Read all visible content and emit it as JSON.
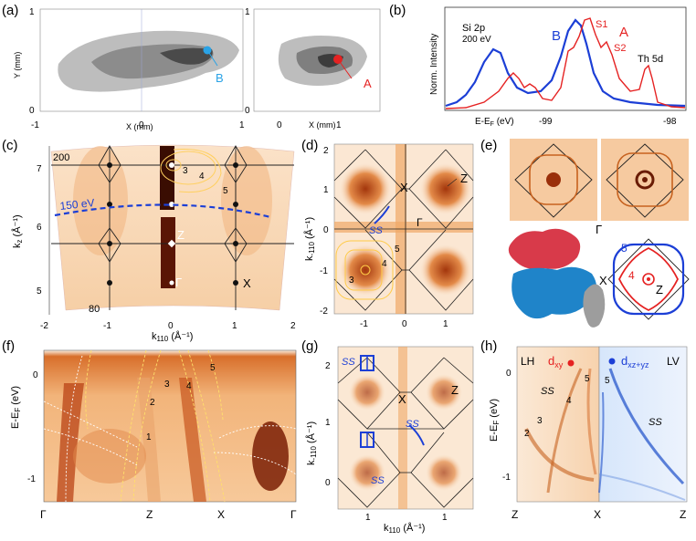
{
  "panel_labels": {
    "a": "(a)",
    "b": "(b)",
    "c": "(c)",
    "d": "(d)",
    "e": "(e)",
    "f": "(f)",
    "g": "(g)",
    "h": "(h)"
  },
  "panel_a": {
    "left": {
      "xlabel": "X (mm)",
      "ylabel": "Y (mm)",
      "xticks": [
        "-1",
        "0",
        "1"
      ],
      "yticks": [
        "0",
        "1"
      ],
      "marker_label": "B",
      "marker_color": "#2aa3e6"
    },
    "right": {
      "xlabel": "X (mm)",
      "xticks": [
        "0",
        "1"
      ],
      "yticks": [
        "0",
        "1"
      ],
      "marker_label": "A",
      "marker_color": "#e52222"
    }
  },
  "panel_b": {
    "xlabel": "E-E F (eV)",
    "xlabel_main": "E-E",
    "xlabel_sub": "F",
    "xlabel_unit": " (eV)",
    "ylabel": "Norm. Intensity",
    "xticks": [
      "-99",
      "-98"
    ],
    "text_top": "Si 2p",
    "text_energy": "200 eV",
    "curve_b_label": "B",
    "curve_a_label": "A",
    "peak_s1": "S1",
    "peak_s2": "S2",
    "peak_th": "Th 5d",
    "color_a": "#e52222",
    "color_b": "#1c3fd6"
  },
  "panel_c": {
    "ylabel_main": "k",
    "ylabel_sub": "z",
    "ylabel_unit": " (Å⁻¹)",
    "xlabel_main": "k",
    "xlabel_sub": "110",
    "xlabel_unit": " (Å⁻¹)",
    "xticks": [
      "-2",
      "-1",
      "0",
      "1",
      "2"
    ],
    "yticks": [
      "5",
      "6",
      "7"
    ],
    "energy_top": "200",
    "energy_bottom": "80",
    "energy_mid": "150 eV",
    "band_labels": [
      "3",
      "4",
      "5"
    ],
    "pt_z": "Z",
    "pt_gamma": "Γ",
    "pt_x": "X"
  },
  "panel_d": {
    "ylabel_main": "k",
    "ylabel_sub": "-110",
    "ylabel_unit": " (Å⁻¹)",
    "yticks": [
      "1",
      "0",
      "-1",
      "-2"
    ],
    "xticks": [
      "-1",
      "0",
      "1"
    ],
    "pt_x": "X",
    "pt_z": "Z",
    "pt_gamma": "Γ",
    "ss": "SS",
    "band_labels": [
      "3",
      "4",
      "5"
    ]
  },
  "panel_e": {
    "pt_gamma": "Γ",
    "pt_x": "X",
    "pt_z": "Z",
    "band_4": "4",
    "band_5": "5"
  },
  "panel_f": {
    "ylabel": "E-E F (eV)",
    "ylabel_main": "E-E",
    "ylabel_sub": "F",
    "ylabel_unit": " (eV)",
    "yticks": [
      "0",
      "-1"
    ],
    "xticks": [
      "Γ",
      "Z",
      "X",
      "Γ"
    ],
    "band_labels": [
      "1",
      "2",
      "3",
      "4",
      "5"
    ]
  },
  "panel_g": {
    "ylabel_main": "k",
    "ylabel_sub": "-110",
    "ylabel_unit": " (Å⁻¹)",
    "xlabel_main": "k",
    "xlabel_sub": "110",
    "xlabel_unit": " (Å⁻¹)",
    "yticks": [
      "2",
      "1",
      "0"
    ],
    "xticks": [
      "1",
      "1"
    ],
    "pt_x": "X",
    "pt_z": "Z",
    "ss": "SS"
  },
  "panel_h": {
    "ylabel_main": "E-E",
    "ylabel_sub": "F",
    "ylabel_unit": " (eV)",
    "yticks": [
      "0",
      "-1"
    ],
    "xticks": [
      "Z",
      "X",
      "Z"
    ],
    "lh": "LH",
    "lv": "LV",
    "dxy_main": "d",
    "dxy_sub": "xy",
    "dxz_main": "d",
    "dxz_sub": "xz+yz",
    "ss": "SS",
    "left_bands": [
      "5",
      "4",
      "3",
      "2"
    ],
    "right_band": "5"
  }
}
